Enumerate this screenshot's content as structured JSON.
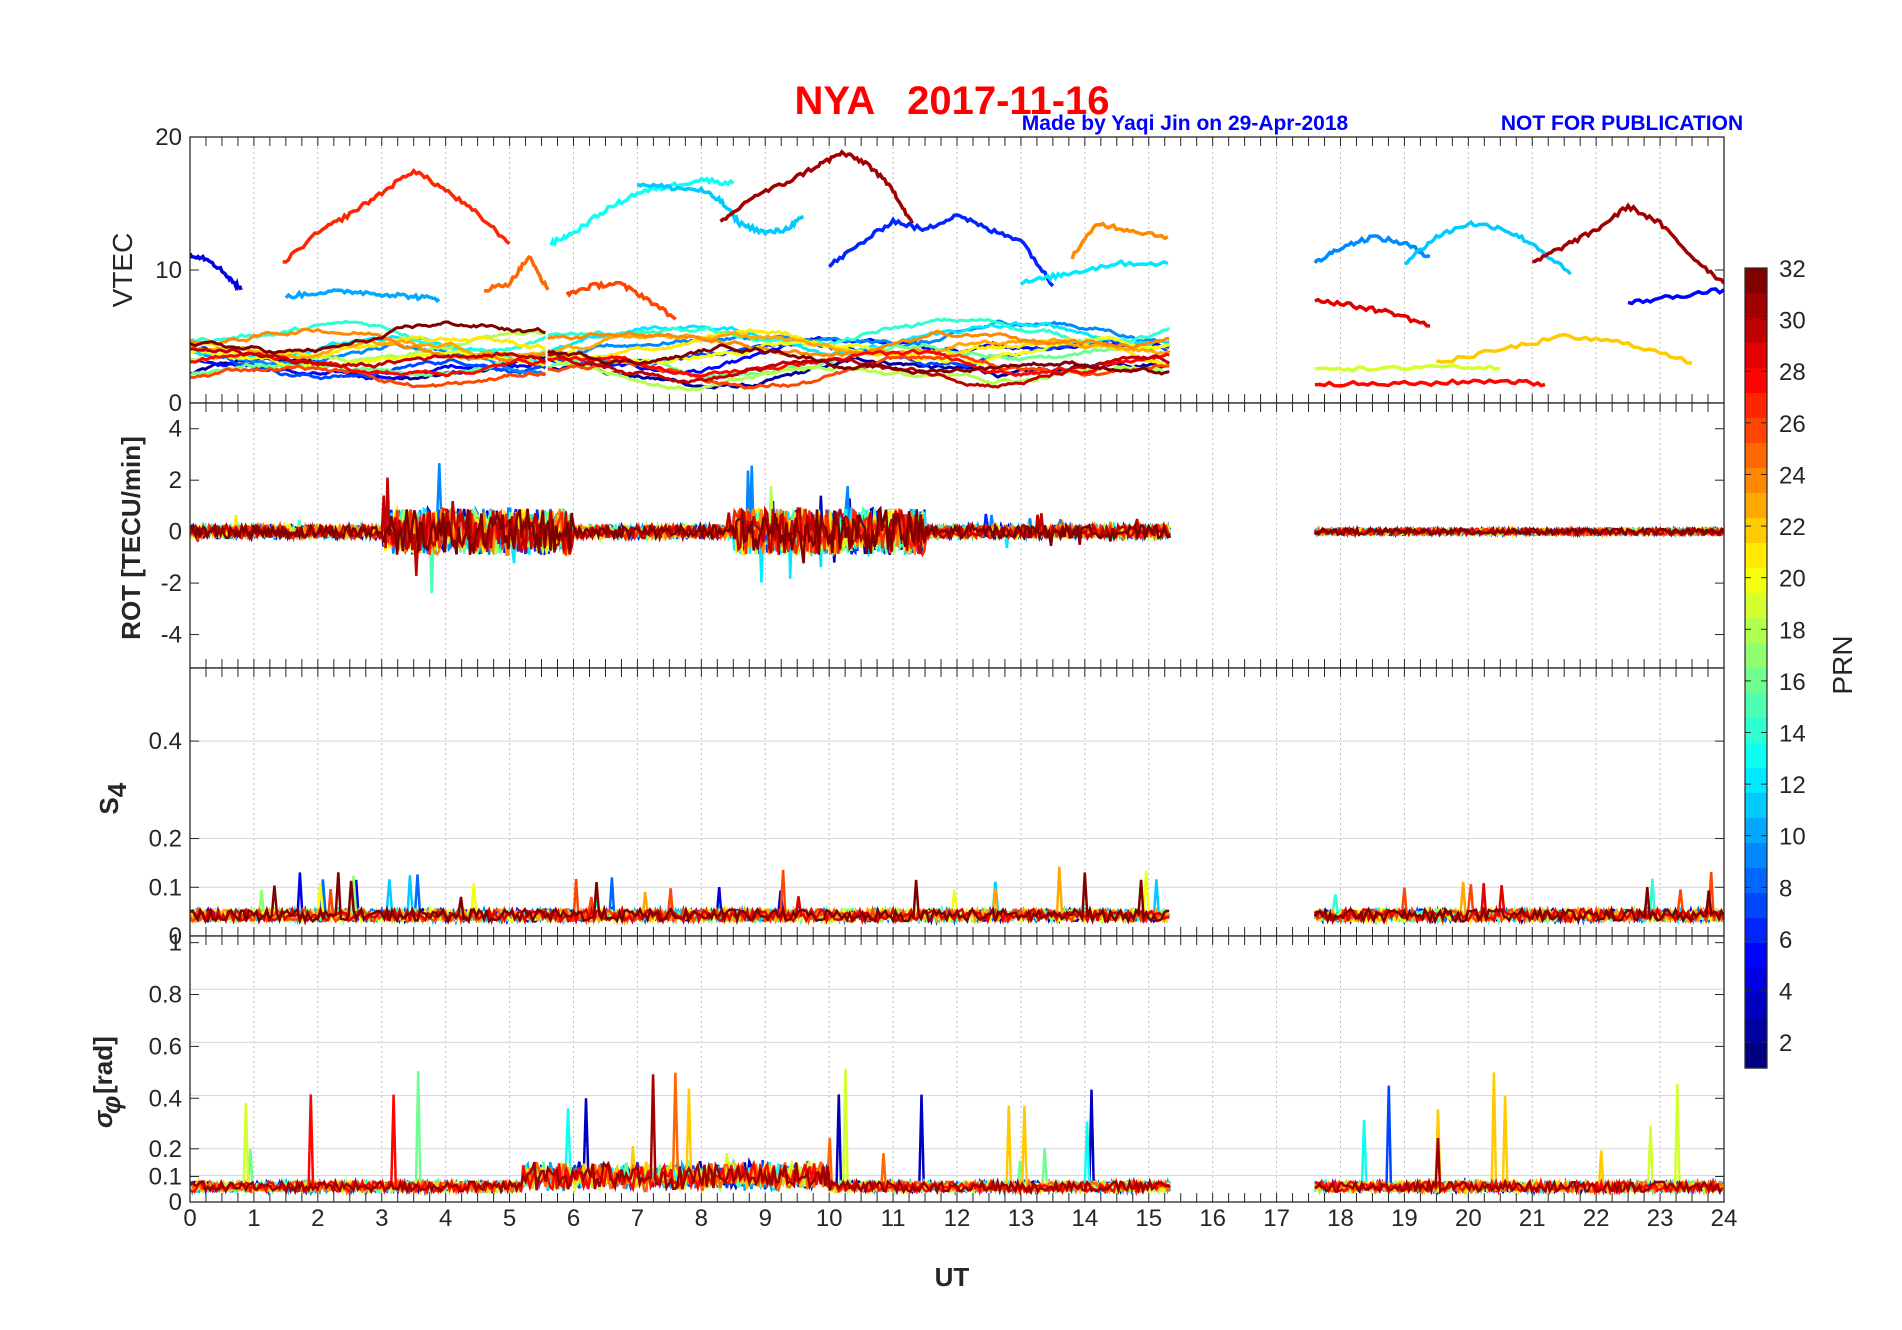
{
  "header": {
    "title": "NYA   2017-11-16",
    "credit": "Made by Yaqi Jin on 29-Apr-2018",
    "notice": "NOT FOR PUBLICATION"
  },
  "colors": {
    "title": "#ff0000",
    "subtitle": "#0000ff",
    "colormap": "jet"
  },
  "chart_data": [
    {
      "type": "line",
      "ylabel": "VTEC",
      "ylim": [
        0,
        20
      ],
      "yticks": [
        0,
        10,
        20
      ],
      "ytick_labels": [
        "0",
        "10",
        "20"
      ],
      "xlim": [
        0,
        24
      ],
      "grid": "vertical",
      "data_gap_hours": [
        15.35,
        17.6
      ],
      "series": [
        {
          "prn": 27,
          "x": [
            1.45,
            2.0,
            2.5,
            3.0,
            3.5,
            4.0,
            4.5,
            5.0
          ],
          "y": [
            10.5,
            12.8,
            14.2,
            15.8,
            17.5,
            16.0,
            14.2,
            12.0
          ]
        },
        {
          "prn": 13,
          "x": [
            5.65,
            6.0,
            6.5,
            7.0,
            7.5,
            8.0,
            8.5
          ],
          "y": [
            12.0,
            12.8,
            14.5,
            15.8,
            16.3,
            16.8,
            16.5
          ]
        },
        {
          "prn": 11,
          "x": [
            7.0,
            7.5,
            8.0,
            8.3,
            8.6,
            9.0,
            9.3,
            9.6
          ],
          "y": [
            16.5,
            16.2,
            16.0,
            15.2,
            13.5,
            12.8,
            13.0,
            14.0
          ]
        },
        {
          "prn": 31,
          "x": [
            8.3,
            8.8,
            9.3,
            9.8,
            10.2,
            10.6,
            11.0,
            11.3
          ],
          "y": [
            13.5,
            15.5,
            16.5,
            17.8,
            18.8,
            18.0,
            16.0,
            13.5
          ]
        },
        {
          "prn": 6,
          "x": [
            10.0,
            10.5,
            11.0,
            11.5,
            12.0,
            12.5,
            13.0,
            13.5
          ],
          "y": [
            10.3,
            12.0,
            13.7,
            13.0,
            14.2,
            13.0,
            12.3,
            8.8
          ]
        },
        {
          "prn": 4,
          "x": [
            0.0,
            0.3,
            0.6,
            0.8
          ],
          "y": [
            11.2,
            10.8,
            9.5,
            8.5
          ]
        },
        {
          "prn": 10,
          "x": [
            1.5,
            2.0,
            2.5,
            3.0,
            3.5,
            3.9
          ],
          "y": [
            8.0,
            8.3,
            8.4,
            8.2,
            8.0,
            7.8
          ]
        },
        {
          "prn": 25,
          "x": [
            4.6,
            5.0,
            5.3,
            5.6
          ],
          "y": [
            8.5,
            9.0,
            11.0,
            8.5
          ]
        },
        {
          "prn": 26,
          "x": [
            5.9,
            6.3,
            6.7,
            7.1,
            7.6
          ],
          "y": [
            8.2,
            8.8,
            9.0,
            8.0,
            6.3
          ]
        },
        {
          "prn": 24,
          "x": [
            13.8,
            14.2,
            14.7,
            15.3
          ],
          "y": [
            11.0,
            13.5,
            13.0,
            12.5
          ]
        },
        {
          "prn": 12,
          "x": [
            13.0,
            13.5,
            14.0,
            14.5,
            15.3
          ],
          "y": [
            9.0,
            9.5,
            10.0,
            10.5,
            10.5
          ]
        },
        {
          "prn": 9,
          "x": [
            17.6,
            18.0,
            18.5,
            19.0,
            19.4
          ],
          "y": [
            10.5,
            11.7,
            12.5,
            12.0,
            11.0
          ]
        },
        {
          "prn": 11,
          "x": [
            19.0,
            19.5,
            20.0,
            20.5,
            21.0,
            21.6
          ],
          "y": [
            10.5,
            12.5,
            13.5,
            13.2,
            12.0,
            9.7
          ]
        },
        {
          "prn": 31,
          "x": [
            21.0,
            21.5,
            22.0,
            22.5,
            23.0,
            23.5,
            24.0
          ],
          "y": [
            10.5,
            11.8,
            13.0,
            14.8,
            13.5,
            11.0,
            9.0
          ]
        },
        {
          "prn": 29,
          "x": [
            17.6,
            18.2,
            18.8,
            19.4
          ],
          "y": [
            7.8,
            7.3,
            6.8,
            5.8
          ]
        },
        {
          "prn": 5,
          "x": [
            22.5,
            23.2,
            24.0
          ],
          "y": [
            7.5,
            8.0,
            8.5
          ]
        },
        {
          "prn": 22,
          "x": [
            19.5,
            20.5,
            21.5,
            22.5,
            23.5
          ],
          "y": [
            3.0,
            4.0,
            5.0,
            4.5,
            3.0
          ]
        },
        {
          "prn": 19,
          "x": [
            17.6,
            18.5,
            19.5,
            20.5
          ],
          "y": [
            2.7,
            2.5,
            2.8,
            2.6
          ]
        },
        {
          "prn": 28,
          "x": [
            17.6,
            18.5,
            19.5,
            20.5,
            21.2
          ],
          "y": [
            1.5,
            1.4,
            1.5,
            1.7,
            1.4
          ]
        }
      ]
    },
    {
      "type": "line",
      "ylabel": "ROT [TECU/min]",
      "ylim": [
        -5.3,
        5
      ],
      "yticks": [
        -4,
        -2,
        0,
        2,
        4
      ],
      "ytick_labels": [
        "-4",
        "-2",
        "0",
        "2",
        "4"
      ],
      "xlim": [
        0,
        24
      ],
      "grid": "vertical"
    },
    {
      "type": "line",
      "ylabel": "S4",
      "ylim": [
        0,
        0.55
      ],
      "yticks": [
        0,
        0.1,
        0.2,
        0.4
      ],
      "ytick_labels": [
        "0",
        "0.1",
        "0.2",
        "0.4"
      ],
      "xlim": [
        0,
        24
      ],
      "grid": "both"
    },
    {
      "type": "line",
      "ylabel": "σφ [rad]",
      "ylim": [
        0,
        1
      ],
      "yticks": [
        0,
        0.1,
        0.2,
        0.4,
        0.6,
        0.8,
        1
      ],
      "ytick_labels": [
        "0",
        "0.1",
        "0.2",
        "0.4",
        "0.6",
        "0.8",
        "1"
      ],
      "xlim": [
        0,
        24
      ],
      "xticks": [
        0,
        1,
        2,
        3,
        4,
        5,
        6,
        7,
        8,
        9,
        10,
        11,
        12,
        13,
        14,
        15,
        16,
        17,
        18,
        19,
        20,
        21,
        22,
        23,
        24
      ],
      "xtick_labels": [
        "0",
        "1",
        "2",
        "3",
        "4",
        "5",
        "6",
        "7",
        "8",
        "9",
        "10",
        "11",
        "12",
        "13",
        "14",
        "15",
        "16",
        "17",
        "18",
        "19",
        "20",
        "21",
        "22",
        "23",
        "24"
      ],
      "xlabel": "UT",
      "grid": "both"
    }
  ],
  "colorbar": {
    "label": "PRN",
    "range": [
      1,
      32
    ],
    "ticks": [
      2,
      4,
      6,
      8,
      10,
      12,
      14,
      16,
      18,
      20,
      22,
      24,
      26,
      28,
      30,
      32
    ],
    "tick_labels": [
      "2",
      "4",
      "6",
      "8",
      "10",
      "12",
      "14",
      "16",
      "18",
      "20",
      "22",
      "24",
      "26",
      "28",
      "30",
      "32"
    ]
  }
}
